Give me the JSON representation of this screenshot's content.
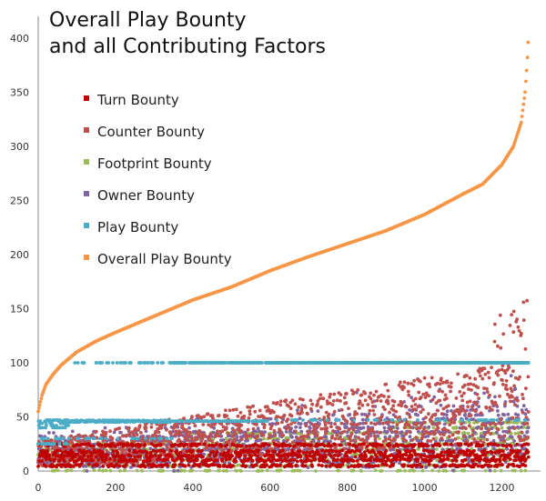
{
  "chart_data": {
    "type": "scatter",
    "title_lines": [
      "Overall Play Bounty",
      "and all Contributing Factors"
    ],
    "xlabel": "",
    "ylabel": "",
    "xlim": [
      0,
      1300
    ],
    "ylim": [
      0,
      420
    ],
    "x_ticks": [
      0,
      200,
      400,
      600,
      800,
      1000,
      1200
    ],
    "y_ticks": [
      0,
      50,
      100,
      150,
      200,
      250,
      300,
      350,
      400
    ],
    "grid": false,
    "legend_position": "top-left",
    "n_points": 1270,
    "series": [
      {
        "name": "Turn Bounty",
        "color": "#c00000",
        "levels": [
          5,
          10,
          14,
          18,
          24
        ],
        "description_range": [
          2,
          30
        ]
      },
      {
        "name": "Counter Bounty",
        "color": "#c0504d",
        "range": [
          10,
          200
        ],
        "trend": "rising; scattered 10-60 for x<600, 20-100 for x 600-1000, up to 200 near x=1260"
      },
      {
        "name": "Footprint Bounty",
        "color": "#9bbb59",
        "levels": [
          0,
          5,
          10,
          15,
          20,
          25,
          30,
          35,
          40,
          45
        ],
        "range": [
          0,
          45
        ]
      },
      {
        "name": "Owner Bounty",
        "color": "#8064a2",
        "range": [
          0,
          95
        ],
        "trend": "banded; spreading upward with x"
      },
      {
        "name": "Play Bounty",
        "color": "#4bacc6",
        "levels": [
          25,
          30,
          40,
          47,
          100
        ],
        "trend": "~40-48 for x<200, mostly 100 for x>=350"
      },
      {
        "name": "Overall Play Bounty",
        "color": "#f79646",
        "x": [
          0,
          10,
          20,
          40,
          60,
          80,
          100,
          150,
          200,
          300,
          400,
          500,
          600,
          700,
          800,
          900,
          1000,
          1100,
          1150,
          1200,
          1230,
          1250,
          1260,
          1265,
          1270
        ],
        "y": [
          55,
          70,
          80,
          90,
          98,
          104,
          110,
          120,
          128,
          143,
          158,
          170,
          185,
          198,
          210,
          222,
          237,
          256,
          265,
          283,
          300,
          322,
          350,
          375,
          410
        ]
      }
    ]
  }
}
